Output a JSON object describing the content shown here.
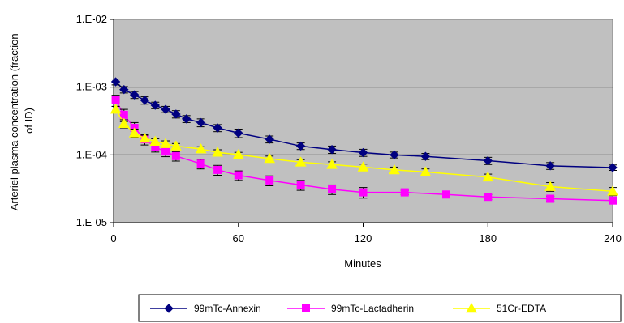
{
  "chart_data": {
    "type": "line",
    "xlabel": "Minutes",
    "ylabel": "Arteriel plasma concentration (fraction of ID)",
    "ylabel_lines": [
      "Arteriel plasma concentration (fraction",
      "of ID)"
    ],
    "xlim": [
      0,
      240
    ],
    "ylim": [
      1e-05,
      0.01
    ],
    "yscale": "log",
    "xticks": [
      0,
      60,
      120,
      180,
      240
    ],
    "xtick_labels": [
      "0",
      "60",
      "120",
      "180",
      "240"
    ],
    "yticks": [
      1e-05,
      0.0001,
      0.001,
      0.01
    ],
    "ytick_labels": [
      "1.E-05",
      "1.E-04",
      "1.E-03",
      "1.E-02"
    ],
    "grid": "horizontal major",
    "plot_background": "#c0c0c0",
    "legend_position": "bottom",
    "series": [
      {
        "name": "99mTc-Annexin",
        "color": "#000080",
        "marker": "diamond",
        "x": [
          1,
          5,
          10,
          15,
          20,
          25,
          30,
          35,
          42,
          50,
          60,
          75,
          90,
          105,
          120,
          135,
          150,
          180,
          210,
          240
        ],
        "y": [
          0.0012,
          0.00092,
          0.00077,
          0.00064,
          0.00054,
          0.00047,
          0.0004,
          0.00034,
          0.0003,
          0.00025,
          0.00021,
          0.00017,
          0.000135,
          0.00012,
          0.000108,
          0.0001,
          9.5e-05,
          8.2e-05,
          6.9e-05,
          6.5e-05
        ],
        "err": [
          0.00012,
          0.0001,
          9e-05,
          8e-05,
          6e-05,
          5e-05,
          5e-05,
          4e-05,
          4e-05,
          3e-05,
          3e-05,
          2e-05,
          1.5e-05,
          1.5e-05,
          1.3e-05,
          1e-05,
          1e-05,
          1e-05,
          8e-06,
          6e-06
        ]
      },
      {
        "name": "99mTc-Lactadherin",
        "color": "#ff00ff",
        "marker": "square",
        "x": [
          1,
          5,
          10,
          15,
          20,
          25,
          30,
          42,
          50,
          60,
          75,
          90,
          105,
          120,
          140,
          160,
          180,
          210,
          240
        ],
        "y": [
          0.00064,
          0.00039,
          0.00025,
          0.00017,
          0.00013,
          0.000112,
          9.6e-05,
          7.4e-05,
          6e-05,
          5e-05,
          4.2e-05,
          3.6e-05,
          3.1e-05,
          2.8e-05,
          2.8e-05,
          2.6e-05,
          2.4e-05,
          2.25e-05,
          2.12e-05
        ],
        "err": [
          0.00012,
          8e-05,
          5e-05,
          3e-05,
          2e-05,
          1.8e-05,
          1.5e-05,
          1.2e-05,
          1e-05,
          8e-06,
          7e-06,
          6e-06,
          5e-06,
          5e-06,
          2e-06,
          2e-06,
          2e-06,
          2e-06,
          2e-06
        ]
      },
      {
        "name": "51Cr-EDTA",
        "color": "#ffff00",
        "marker": "triangle",
        "x": [
          1,
          5,
          10,
          15,
          20,
          25,
          30,
          42,
          50,
          60,
          75,
          90,
          105,
          120,
          135,
          150,
          180,
          210,
          240
        ],
        "y": [
          0.00047,
          0.00029,
          0.00021,
          0.000175,
          0.000158,
          0.000146,
          0.000135,
          0.000122,
          0.000109,
          0.000101,
          8.8e-05,
          7.8e-05,
          7.2e-05,
          6.6e-05,
          6e-05,
          5.6e-05,
          4.7e-05,
          3.4e-05,
          2.9e-05
        ],
        "err": [
          5e-05,
          4e-05,
          3e-05,
          2e-05,
          1.5e-05,
          1.5e-05,
          1.2e-05,
          1e-05,
          1e-05,
          8e-06,
          8e-06,
          7e-06,
          7e-06,
          7e-06,
          6e-06,
          6e-06,
          5e-06,
          5e-06,
          4e-06
        ]
      }
    ]
  }
}
